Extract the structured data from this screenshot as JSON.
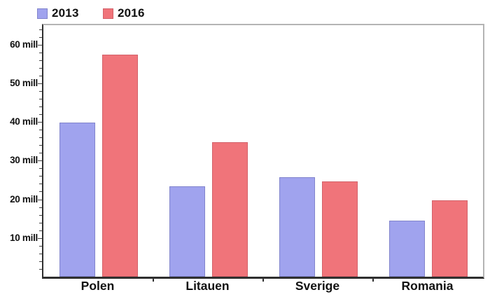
{
  "chart_data": {
    "type": "bar",
    "title": "",
    "categories": [
      "Polen",
      "Litauen",
      "Sverige",
      "Romania"
    ],
    "series": [
      {
        "name": "2013",
        "values": [
          39.8,
          23.3,
          25.7,
          14.5
        ],
        "color": "#a0a3ee",
        "border_color": "#8184cc"
      },
      {
        "name": "2016",
        "values": [
          57.4,
          34.7,
          24.7,
          19.8
        ],
        "color": "#f0747a",
        "border_color": "#d3626a"
      }
    ],
    "unit": "mill",
    "ylim": [
      0,
      65
    ],
    "yticks": [
      10,
      20,
      30,
      40,
      50,
      60
    ],
    "ytick_labels": [
      "10 mill",
      "20 mill",
      "30 mill",
      "40 mill",
      "50 mill",
      "60 mill"
    ],
    "minor_tick_step": 2,
    "legend_position": "top-left",
    "grid": false,
    "axis_color": "#2f2f2f",
    "frame_color": "#b4b4b4",
    "background": "#ffffff",
    "text_color": "#111111"
  }
}
